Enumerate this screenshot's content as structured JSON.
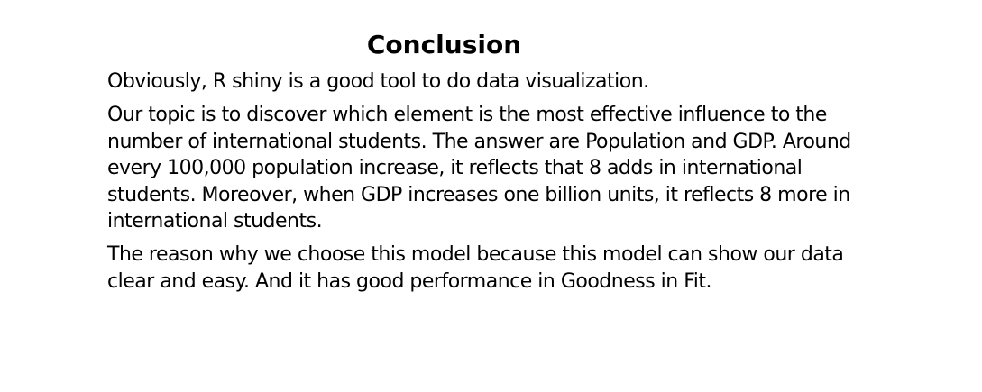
{
  "slide": {
    "title": "Conclusion",
    "paragraphs": [
      {
        "lines": [
          "Obviously, R shiny is a good tool to do data visualization."
        ]
      },
      {
        "lines": [
          "Our topic is to discover which element is the most effective influence to the",
          "number of international students. The answer are Population and GDP. Around",
          "every 100,000 population increase, it reflects that 8 adds in international",
          "students. Moreover, when GDP increases one billion units, it reflects 8 more in",
          "international students."
        ]
      },
      {
        "lines": [
          "The reason why we choose this model because this model can show our data",
          "clear and easy. And it has good performance in Goodness in Fit."
        ]
      }
    ]
  }
}
